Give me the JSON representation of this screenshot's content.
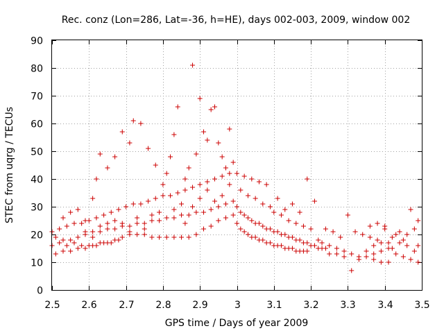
{
  "chart_data": {
    "type": "scatter",
    "title": "Rec. conz (Lon=286, Lat=-36, h=HE), days 002-003, 2009, window 002",
    "xlabel": "GPS time / Days of year 2009",
    "ylabel": "STEC from uqrg / TECUs",
    "xlim": [
      2.5,
      3.5
    ],
    "ylim": [
      0,
      90
    ],
    "xticks": [
      "2.5",
      "2.6",
      "2.7",
      "2.8",
      "2.9",
      "3",
      "3.1",
      "3.2",
      "3.3",
      "3.4",
      "3.5"
    ],
    "yticks": [
      "0",
      "10",
      "20",
      "30",
      "40",
      "50",
      "60",
      "70",
      "80",
      "90"
    ],
    "grid": true,
    "marker": "+",
    "color": "#cc0000",
    "series": [
      {
        "name": "STEC",
        "points": [
          [
            2.51,
            13
          ],
          [
            2.53,
            14
          ],
          [
            2.55,
            14
          ],
          [
            2.57,
            15
          ],
          [
            2.59,
            15
          ],
          [
            2.61,
            16
          ],
          [
            2.63,
            17
          ],
          [
            2.65,
            17
          ],
          [
            2.67,
            18
          ],
          [
            2.69,
            19
          ],
          [
            2.71,
            20
          ],
          [
            2.73,
            20
          ],
          [
            2.75,
            20
          ],
          [
            2.77,
            19
          ],
          [
            2.79,
            19
          ],
          [
            2.81,
            19
          ],
          [
            2.83,
            19
          ],
          [
            2.85,
            19
          ],
          [
            2.87,
            19
          ],
          [
            2.89,
            20
          ],
          [
            2.91,
            22
          ],
          [
            2.93,
            23
          ],
          [
            2.95,
            25
          ],
          [
            2.97,
            26
          ],
          [
            2.99,
            27
          ],
          [
            2.5,
            16
          ],
          [
            2.52,
            17
          ],
          [
            2.54,
            16
          ],
          [
            2.56,
            17
          ],
          [
            2.58,
            16
          ],
          [
            2.6,
            16
          ],
          [
            2.62,
            16
          ],
          [
            2.64,
            17
          ],
          [
            2.66,
            17
          ],
          [
            2.68,
            18
          ],
          [
            2.51,
            19
          ],
          [
            2.53,
            18
          ],
          [
            2.55,
            18
          ],
          [
            2.57,
            19
          ],
          [
            2.59,
            20
          ],
          [
            2.61,
            21
          ],
          [
            2.63,
            21
          ],
          [
            2.65,
            22
          ],
          [
            2.67,
            22
          ],
          [
            2.69,
            23
          ],
          [
            2.71,
            23
          ],
          [
            2.73,
            24
          ],
          [
            2.75,
            24
          ],
          [
            2.77,
            25
          ],
          [
            2.79,
            25
          ],
          [
            2.81,
            26
          ],
          [
            2.83,
            26
          ],
          [
            2.85,
            27
          ],
          [
            2.87,
            27
          ],
          [
            2.89,
            28
          ],
          [
            2.91,
            28
          ],
          [
            2.93,
            29
          ],
          [
            2.95,
            30
          ],
          [
            2.97,
            31
          ],
          [
            2.99,
            32
          ],
          [
            2.5,
            21
          ],
          [
            2.52,
            22
          ],
          [
            2.54,
            23
          ],
          [
            2.56,
            24
          ],
          [
            2.58,
            24
          ],
          [
            2.6,
            25
          ],
          [
            2.62,
            26
          ],
          [
            2.64,
            27
          ],
          [
            2.66,
            28
          ],
          [
            2.68,
            29
          ],
          [
            2.7,
            30
          ],
          [
            2.72,
            31
          ],
          [
            2.74,
            31
          ],
          [
            2.76,
            32
          ],
          [
            2.78,
            33
          ],
          [
            2.8,
            34
          ],
          [
            2.82,
            34
          ],
          [
            2.84,
            35
          ],
          [
            2.86,
            36
          ],
          [
            2.88,
            37
          ],
          [
            2.9,
            38
          ],
          [
            2.92,
            39
          ],
          [
            2.94,
            40
          ],
          [
            2.96,
            41
          ],
          [
            2.98,
            42
          ],
          [
            2.53,
            26
          ],
          [
            2.55,
            28
          ],
          [
            2.57,
            29
          ],
          [
            2.59,
            25
          ],
          [
            2.61,
            33
          ],
          [
            2.62,
            40
          ],
          [
            2.63,
            49
          ],
          [
            2.65,
            44
          ],
          [
            2.67,
            48
          ],
          [
            2.69,
            57
          ],
          [
            2.71,
            53
          ],
          [
            2.72,
            61
          ],
          [
            2.74,
            60
          ],
          [
            2.76,
            51
          ],
          [
            2.78,
            45
          ],
          [
            2.8,
            38
          ],
          [
            2.81,
            42
          ],
          [
            2.82,
            48
          ],
          [
            2.83,
            56
          ],
          [
            2.84,
            66
          ],
          [
            2.86,
            40
          ],
          [
            2.87,
            44
          ],
          [
            2.88,
            81
          ],
          [
            2.89,
            49
          ],
          [
            2.9,
            69
          ],
          [
            2.91,
            57
          ],
          [
            2.92,
            54
          ],
          [
            2.93,
            65
          ],
          [
            2.94,
            66
          ],
          [
            2.95,
            53
          ],
          [
            2.96,
            48
          ],
          [
            2.97,
            44
          ],
          [
            2.98,
            58
          ],
          [
            2.99,
            46
          ],
          [
            2.86,
            24
          ],
          [
            2.88,
            30
          ],
          [
            2.9,
            33
          ],
          [
            2.92,
            36
          ],
          [
            2.94,
            32
          ],
          [
            2.96,
            34
          ],
          [
            2.98,
            38
          ],
          [
            2.85,
            31
          ],
          [
            2.83,
            29
          ],
          [
            2.79,
            28
          ],
          [
            2.77,
            27
          ],
          [
            2.75,
            22
          ],
          [
            2.73,
            26
          ],
          [
            2.71,
            21
          ],
          [
            2.69,
            24
          ],
          [
            2.67,
            25
          ],
          [
            2.65,
            24
          ],
          [
            2.63,
            23
          ],
          [
            2.61,
            19
          ],
          [
            2.59,
            21
          ],
          [
            3.0,
            42
          ],
          [
            3.01,
            36
          ],
          [
            3.02,
            41
          ],
          [
            3.03,
            34
          ],
          [
            3.04,
            40
          ],
          [
            3.05,
            33
          ],
          [
            3.06,
            39
          ],
          [
            3.07,
            31
          ],
          [
            3.08,
            38
          ],
          [
            3.09,
            30
          ],
          [
            3.1,
            28
          ],
          [
            3.11,
            33
          ],
          [
            3.12,
            27
          ],
          [
            3.13,
            29
          ],
          [
            3.14,
            25
          ],
          [
            3.15,
            31
          ],
          [
            3.16,
            24
          ],
          [
            3.17,
            28
          ],
          [
            3.18,
            23
          ],
          [
            3.19,
            40
          ],
          [
            3.2,
            22
          ],
          [
            3.21,
            32
          ],
          [
            3.0,
            30
          ],
          [
            3.01,
            28
          ],
          [
            3.02,
            27
          ],
          [
            3.03,
            26
          ],
          [
            3.04,
            25
          ],
          [
            3.05,
            24
          ],
          [
            3.06,
            24
          ],
          [
            3.07,
            23
          ],
          [
            3.08,
            22
          ],
          [
            3.09,
            22
          ],
          [
            3.1,
            21
          ],
          [
            3.11,
            21
          ],
          [
            3.12,
            20
          ],
          [
            3.13,
            20
          ],
          [
            3.14,
            19
          ],
          [
            3.15,
            19
          ],
          [
            3.16,
            18
          ],
          [
            3.17,
            18
          ],
          [
            3.18,
            17
          ],
          [
            3.19,
            17
          ],
          [
            3.2,
            16
          ],
          [
            3.21,
            16
          ],
          [
            3.22,
            15
          ],
          [
            3.23,
            15
          ],
          [
            3.24,
            15
          ],
          [
            3.0,
            24
          ],
          [
            3.01,
            22
          ],
          [
            3.02,
            21
          ],
          [
            3.03,
            20
          ],
          [
            3.04,
            19
          ],
          [
            3.05,
            19
          ],
          [
            3.06,
            18
          ],
          [
            3.07,
            18
          ],
          [
            3.08,
            17
          ],
          [
            3.09,
            17
          ],
          [
            3.1,
            16
          ],
          [
            3.11,
            16
          ],
          [
            3.12,
            16
          ],
          [
            3.13,
            15
          ],
          [
            3.14,
            15
          ],
          [
            3.15,
            15
          ],
          [
            3.16,
            14
          ],
          [
            3.17,
            14
          ],
          [
            3.18,
            14
          ],
          [
            3.19,
            14
          ],
          [
            3.22,
            18
          ],
          [
            3.23,
            17
          ],
          [
            3.24,
            22
          ],
          [
            3.25,
            16
          ],
          [
            3.26,
            21
          ],
          [
            3.27,
            15
          ],
          [
            3.28,
            19
          ],
          [
            3.29,
            14
          ],
          [
            3.3,
            27
          ],
          [
            3.31,
            13
          ],
          [
            3.32,
            21
          ],
          [
            3.33,
            12
          ],
          [
            3.34,
            20
          ],
          [
            3.35,
            12
          ],
          [
            3.36,
            19
          ],
          [
            3.37,
            11
          ],
          [
            3.38,
            18
          ],
          [
            3.39,
            10
          ],
          [
            3.4,
            23
          ],
          [
            3.41,
            10
          ],
          [
            3.25,
            13
          ],
          [
            3.27,
            13
          ],
          [
            3.29,
            12
          ],
          [
            3.31,
            7
          ],
          [
            3.33,
            11
          ],
          [
            3.35,
            14
          ],
          [
            3.37,
            16
          ],
          [
            3.39,
            17
          ],
          [
            3.41,
            15
          ],
          [
            3.43,
            13
          ],
          [
            3.45,
            12
          ],
          [
            3.47,
            11
          ],
          [
            3.49,
            10
          ],
          [
            3.36,
            23
          ],
          [
            3.38,
            24
          ],
          [
            3.4,
            22
          ],
          [
            3.42,
            19
          ],
          [
            3.43,
            20
          ],
          [
            3.44,
            17
          ],
          [
            3.45,
            18
          ],
          [
            3.46,
            16
          ],
          [
            3.47,
            29
          ],
          [
            3.48,
            22
          ],
          [
            3.49,
            25
          ],
          [
            3.49,
            16
          ],
          [
            3.48,
            14
          ],
          [
            3.46,
            20
          ],
          [
            3.44,
            21
          ],
          [
            3.42,
            15
          ],
          [
            3.41,
            17
          ],
          [
            3.39,
            14
          ],
          [
            3.37,
            13
          ]
        ]
      }
    ]
  }
}
